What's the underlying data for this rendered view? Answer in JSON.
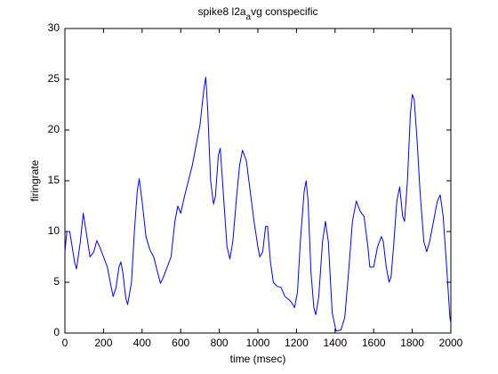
{
  "chart_data": {
    "type": "line",
    "title": [
      "spike8 l2a",
      "a",
      "vg conspecific"
    ],
    "xlabel": "time (msec)",
    "ylabel": "firingrate",
    "xlim": [
      0,
      2000
    ],
    "xticks": [
      0,
      200,
      400,
      600,
      800,
      1000,
      1200,
      1400,
      1600,
      1800,
      2000
    ],
    "ylim": [
      0,
      30
    ],
    "yticks": [
      0,
      5,
      10,
      15,
      20,
      25,
      30
    ],
    "grid": false,
    "series": [
      {
        "color": "#0000ff",
        "x": [
          0,
          10,
          25,
          50,
          60,
          80,
          95,
          110,
          130,
          150,
          165,
          180,
          200,
          220,
          240,
          250,
          265,
          280,
          290,
          300,
          315,
          325,
          345,
          360,
          375,
          385,
          400,
          420,
          440,
          460,
          480,
          495,
          510,
          530,
          550,
          570,
          585,
          600,
          620,
          640,
          660,
          680,
          700,
          720,
          730,
          740,
          755,
          770,
          780,
          795,
          805,
          820,
          840,
          855,
          870,
          890,
          905,
          920,
          940,
          960,
          980,
          1000,
          1010,
          1025,
          1040,
          1050,
          1065,
          1080,
          1100,
          1120,
          1140,
          1160,
          1175,
          1190,
          1205,
          1220,
          1240,
          1250,
          1260,
          1275,
          1290,
          1300,
          1315,
          1335,
          1350,
          1365,
          1385,
          1405,
          1430,
          1450,
          1470,
          1490,
          1510,
          1530,
          1550,
          1570,
          1580,
          1600,
          1620,
          1640,
          1650,
          1665,
          1680,
          1690,
          1705,
          1720,
          1735,
          1750,
          1760,
          1775,
          1790,
          1800,
          1810,
          1825,
          1840,
          1860,
          1875,
          1890,
          1910,
          1930,
          1945,
          1960,
          1980,
          1995,
          2000
        ],
        "values": [
          8,
          10,
          10,
          7,
          6.3,
          9,
          11.8,
          10,
          7.5,
          8,
          9.1,
          8.5,
          7.5,
          6.5,
          4.5,
          3.6,
          4.5,
          6.5,
          7,
          6,
          3.5,
          2.8,
          5,
          10,
          14,
          15.2,
          13,
          9.5,
          8.2,
          7.5,
          6,
          4.9,
          5.5,
          6.5,
          7.5,
          11,
          12.5,
          11.8,
          13.5,
          15,
          16.5,
          18.5,
          20.5,
          24,
          25.2,
          22,
          15,
          12.7,
          13.5,
          17.5,
          18.2,
          14,
          8.5,
          7.3,
          9,
          13.5,
          16.5,
          18,
          17,
          14,
          11,
          8.5,
          7.5,
          8,
          10.5,
          10.5,
          7,
          5,
          4.6,
          4.5,
          3.6,
          3.3,
          3,
          2.5,
          4,
          9,
          14,
          15,
          13,
          6,
          2.5,
          1.8,
          3.5,
          9,
          11,
          9,
          2,
          0.2,
          0.3,
          1.5,
          6,
          11,
          13,
          12,
          11.5,
          8.5,
          6.5,
          6.5,
          8.5,
          9.5,
          9,
          6.5,
          5,
          5.5,
          9,
          13,
          14.4,
          11.5,
          11,
          15,
          21.5,
          23.5,
          23,
          19,
          14,
          9,
          8,
          9,
          11,
          13,
          13.6,
          11.5,
          6,
          1.5,
          1
        ]
      }
    ]
  }
}
